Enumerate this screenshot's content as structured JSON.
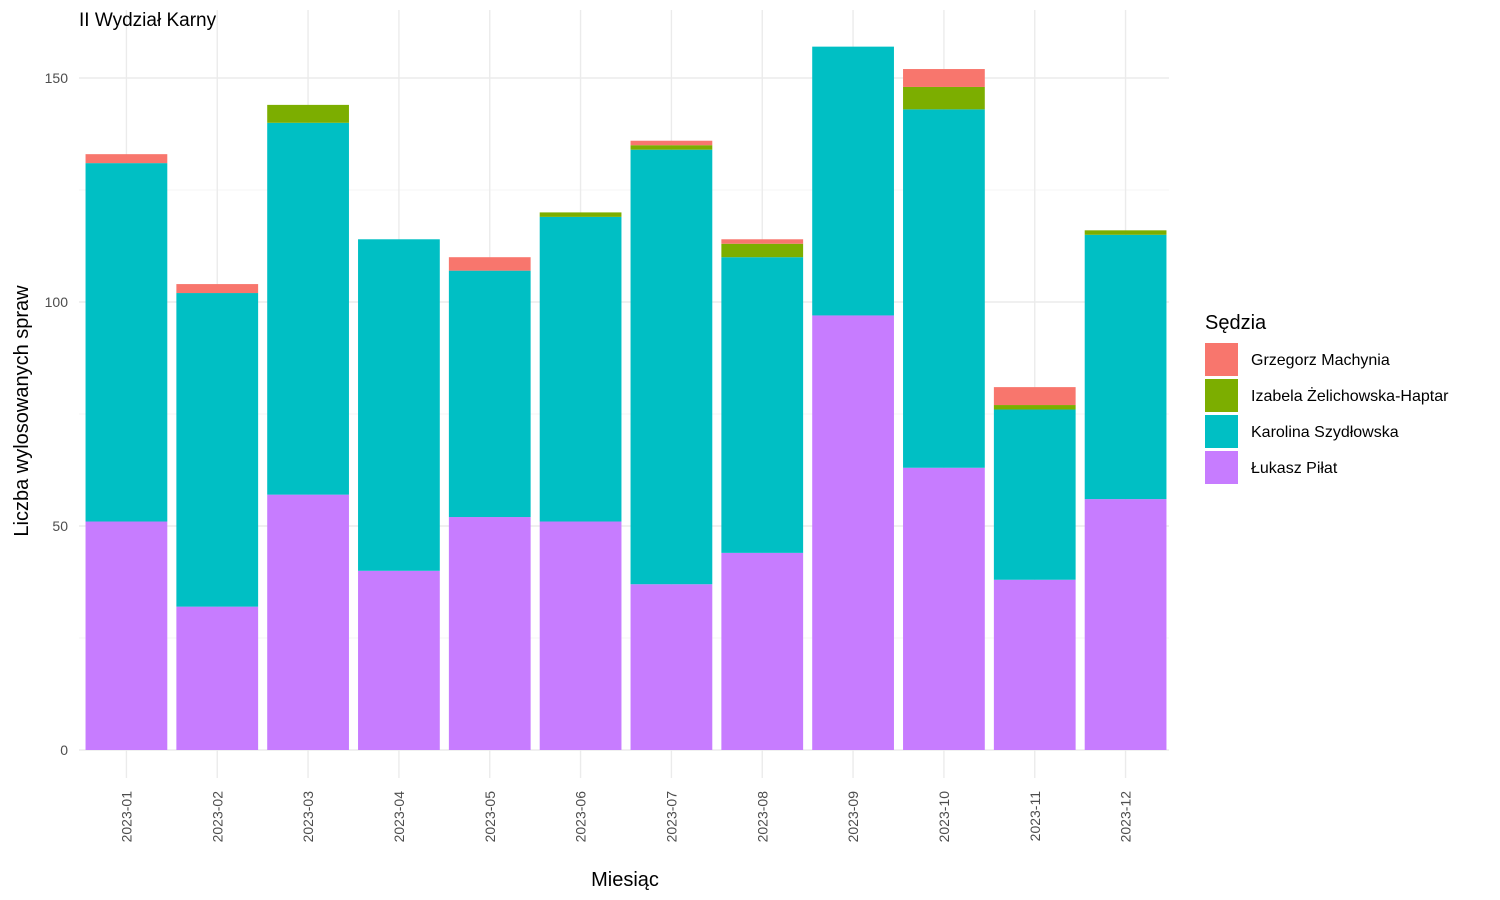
{
  "chart_data": {
    "type": "bar",
    "stacked": true,
    "title": "II Wydział Karny",
    "xlabel": "Miesiąc",
    "ylabel": "Liczba wylosowanych spraw",
    "ylim": [
      0,
      160
    ],
    "yticks": [
      0,
      50,
      100,
      150
    ],
    "grid": true,
    "legend_title": "Sędzia",
    "legend_position": "right",
    "categories": [
      "2023-01",
      "2023-02",
      "2023-03",
      "2023-04",
      "2023-05",
      "2023-06",
      "2023-07",
      "2023-08",
      "2023-09",
      "2023-10",
      "2023-11",
      "2023-12"
    ],
    "series": [
      {
        "name": "Grzegorz Machynia",
        "color": "#F8766D",
        "values": [
          2,
          2,
          0,
          0,
          3,
          0,
          1,
          1,
          0,
          4,
          4,
          0
        ]
      },
      {
        "name": "Izabela Żelichowska-Haptar",
        "color": "#7CAE00",
        "values": [
          0,
          0,
          4,
          0,
          0,
          1,
          1,
          3,
          0,
          5,
          1,
          1
        ]
      },
      {
        "name": "Karolina Szydłowska",
        "color": "#00BFC4",
        "values": [
          80,
          70,
          83,
          74,
          55,
          68,
          97,
          66,
          60,
          80,
          38,
          59
        ]
      },
      {
        "name": "Łukasz Piłat",
        "color": "#C77CFF",
        "values": [
          51,
          32,
          57,
          40,
          52,
          51,
          37,
          44,
          97,
          63,
          38,
          56
        ]
      }
    ]
  }
}
